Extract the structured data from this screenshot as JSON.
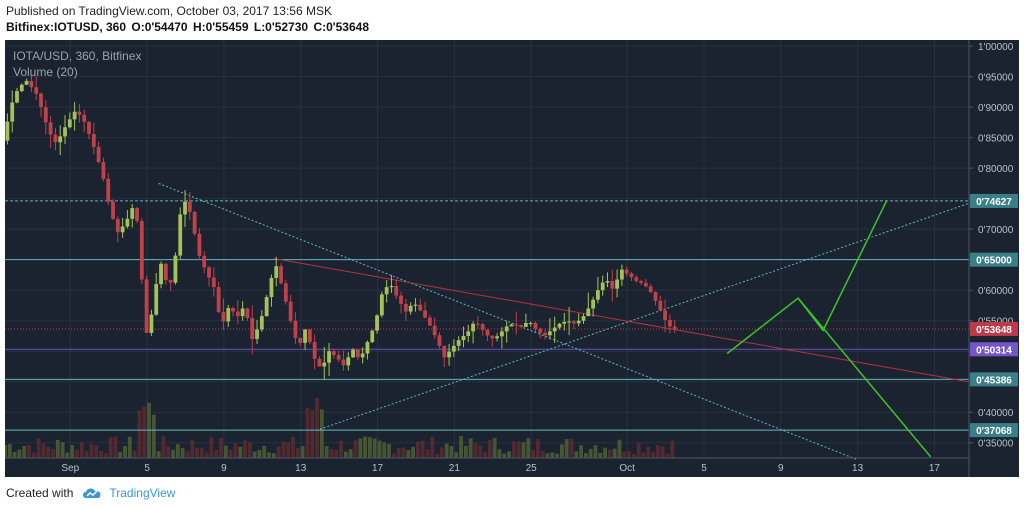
{
  "header": {
    "published": "Published on TradingView.com, October 03, 2017 13:56 MSK",
    "symbol": "Bitfinex:IOTUSD, 360",
    "open": "O:0'54470",
    "high": "H:0'55459",
    "low": "L:0'52730",
    "close": "C:0'53648"
  },
  "legend": {
    "title": "IOTA/USD, 360, Bitfinex",
    "volume": "Volume (20)"
  },
  "footer": {
    "created_with": "Created with",
    "brand": "TradingView"
  },
  "colors": {
    "background": "#1b2330",
    "up": "#a3c25a",
    "down": "#c0404b",
    "grid": "#27313f",
    "cyan_line": "#5fb8be",
    "red_line": "#b6323e",
    "green_line": "#3ec422",
    "purple_line": "#6a4fc4",
    "price_label": "#c0394a",
    "label_cyan": "#3a7f87",
    "label_purple": "#7456c8"
  },
  "chart_data": {
    "type": "candlestick",
    "title": "IOTA/USD, 360, Bitfinex",
    "indicator": "Volume (20)",
    "y_ticks": [
      "1'00000",
      "0'95000",
      "0'90000",
      "0'85000",
      "0'80000",
      "0'75000",
      "0'70000",
      "0'65000",
      "0'60000",
      "0'55000",
      "0'50000",
      "0'45000",
      "0'40000",
      "0'35000"
    ],
    "y_range": [
      0.325,
      1.01
    ],
    "x_ticks": [
      {
        "label": "Sep",
        "day": 32
      },
      {
        "label": "5",
        "day": 36
      },
      {
        "label": "9",
        "day": 40
      },
      {
        "label": "13",
        "day": 44
      },
      {
        "label": "17",
        "day": 48
      },
      {
        "label": "21",
        "day": 52
      },
      {
        "label": "25",
        "day": 56
      },
      {
        "label": "Oct",
        "day": 61
      },
      {
        "label": "5",
        "day": 65
      },
      {
        "label": "9",
        "day": 69
      },
      {
        "label": "13",
        "day": 73
      },
      {
        "label": "17",
        "day": 77
      }
    ],
    "x_range": [
      28.6,
      78.8
    ],
    "horizontal_levels": [
      {
        "value": 0.74627,
        "label": "0'74627",
        "style": "dashed",
        "color": "label_cyan"
      },
      {
        "value": 0.65,
        "label": "0'65000",
        "style": "solid",
        "color": "label_cyan"
      },
      {
        "value": 0.53648,
        "label": "0'53648",
        "style": "dotted",
        "color": "price_label"
      },
      {
        "value": 0.50314,
        "label": "0'50314",
        "style": "solid",
        "color": "label_purple"
      },
      {
        "value": 0.45386,
        "label": "0'45386",
        "style": "solid",
        "color": "label_cyan"
      },
      {
        "value": 0.37068,
        "label": "0'37068",
        "style": "solid",
        "color": "label_cyan"
      }
    ],
    "trend_lines": [
      {
        "name": "descending-support",
        "from": [
          36.6,
          0.775
        ],
        "to": [
          73.0,
          0.322
        ],
        "style": "dotted",
        "color": "cyan_line"
      },
      {
        "name": "ascending-support",
        "from": [
          44.8,
          0.37
        ],
        "to": [
          79.3,
          0.748
        ],
        "style": "dotted",
        "color": "cyan_line"
      },
      {
        "name": "descending-resistance",
        "from": [
          42.6,
          0.652
        ],
        "to": [
          79.3,
          0.447
        ],
        "style": "solid",
        "color": "red_line"
      },
      {
        "name": "projection",
        "points": [
          [
            66.2,
            0.496
          ],
          [
            69.9,
            0.587
          ],
          [
            71.2,
            0.534
          ],
          [
            74.5,
            0.746
          ]
        ],
        "style": "solid",
        "color": "green_line"
      },
      {
        "name": "projection-drop",
        "from": [
          69.9,
          0.587
        ],
        "to": [
          76.8,
          0.327
        ],
        "style": "solid",
        "color": "green_line"
      }
    ],
    "price_path": [
      [
        28.6,
        0.845
      ],
      [
        29.2,
        0.92
      ],
      [
        29.8,
        0.945
      ],
      [
        30.4,
        0.92
      ],
      [
        31.0,
        0.86
      ],
      [
        31.4,
        0.84
      ],
      [
        31.9,
        0.87
      ],
      [
        32.4,
        0.895
      ],
      [
        32.8,
        0.88
      ],
      [
        33.3,
        0.84
      ],
      [
        33.8,
        0.79
      ],
      [
        34.2,
        0.73
      ],
      [
        34.6,
        0.695
      ],
      [
        35.0,
        0.71
      ],
      [
        35.5,
        0.745
      ],
      [
        35.8,
        0.65
      ],
      [
        36.0,
        0.52
      ],
      [
        36.3,
        0.55
      ],
      [
        36.6,
        0.61
      ],
      [
        36.9,
        0.65
      ],
      [
        37.2,
        0.6
      ],
      [
        37.5,
        0.625
      ],
      [
        37.8,
        0.72
      ],
      [
        38.1,
        0.745
      ],
      [
        38.4,
        0.725
      ],
      [
        38.8,
        0.66
      ],
      [
        39.2,
        0.63
      ],
      [
        39.6,
        0.605
      ],
      [
        40.0,
        0.54
      ],
      [
        40.4,
        0.575
      ],
      [
        40.8,
        0.555
      ],
      [
        41.2,
        0.575
      ],
      [
        41.6,
        0.52
      ],
      [
        42.0,
        0.545
      ],
      [
        42.4,
        0.595
      ],
      [
        42.8,
        0.645
      ],
      [
        43.2,
        0.6
      ],
      [
        43.6,
        0.55
      ],
      [
        44.0,
        0.505
      ],
      [
        44.4,
        0.54
      ],
      [
        44.8,
        0.49
      ],
      [
        45.2,
        0.47
      ],
      [
        45.6,
        0.5
      ],
      [
        46.0,
        0.49
      ],
      [
        46.4,
        0.475
      ],
      [
        46.8,
        0.505
      ],
      [
        47.2,
        0.485
      ],
      [
        47.6,
        0.515
      ],
      [
        48.0,
        0.545
      ],
      [
        48.4,
        0.6
      ],
      [
        48.8,
        0.61
      ],
      [
        49.2,
        0.585
      ],
      [
        49.6,
        0.565
      ],
      [
        50.0,
        0.58
      ],
      [
        50.4,
        0.565
      ],
      [
        50.8,
        0.545
      ],
      [
        51.2,
        0.52
      ],
      [
        51.6,
        0.49
      ],
      [
        52.0,
        0.505
      ],
      [
        52.4,
        0.52
      ],
      [
        52.8,
        0.53
      ],
      [
        53.2,
        0.55
      ],
      [
        53.6,
        0.535
      ],
      [
        54.0,
        0.52
      ],
      [
        54.4,
        0.525
      ],
      [
        54.8,
        0.54
      ],
      [
        55.2,
        0.545
      ],
      [
        55.6,
        0.54
      ],
      [
        56.0,
        0.55
      ],
      [
        56.4,
        0.535
      ],
      [
        56.8,
        0.525
      ],
      [
        57.2,
        0.535
      ],
      [
        57.6,
        0.545
      ],
      [
        58.0,
        0.55
      ],
      [
        58.4,
        0.545
      ],
      [
        58.8,
        0.555
      ],
      [
        59.2,
        0.575
      ],
      [
        59.6,
        0.6
      ],
      [
        60.0,
        0.62
      ],
      [
        60.4,
        0.6
      ],
      [
        60.8,
        0.635
      ],
      [
        61.2,
        0.625
      ],
      [
        61.6,
        0.615
      ],
      [
        62.0,
        0.61
      ],
      [
        62.4,
        0.595
      ],
      [
        62.8,
        0.57
      ],
      [
        63.2,
        0.545
      ],
      [
        63.5,
        0.536
      ]
    ],
    "last_close": 0.53648
  }
}
